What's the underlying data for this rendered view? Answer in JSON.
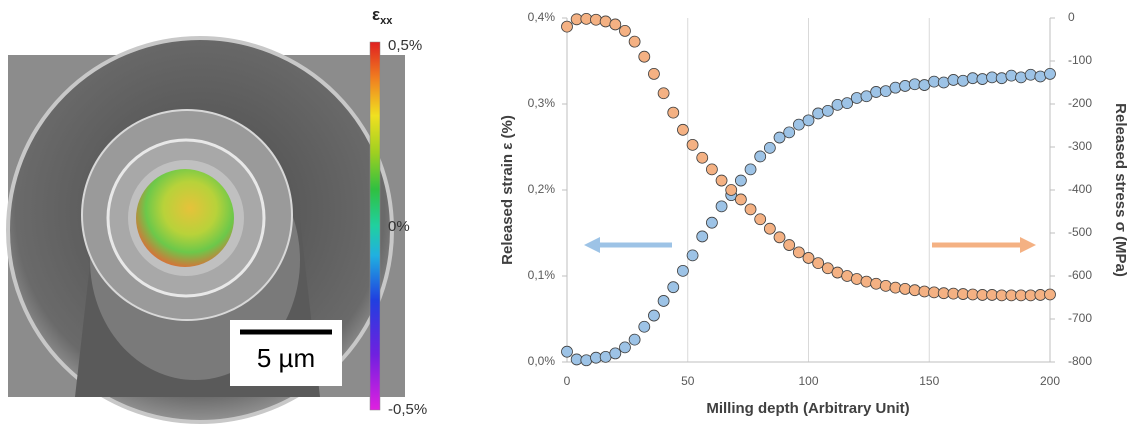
{
  "colorbar": {
    "title": "ε",
    "title_sub": "xx",
    "labels": [
      "0,5%",
      "0%",
      "-0,5%"
    ]
  },
  "scale_bar": "5 µm",
  "chart_data": {
    "type": "scatter",
    "x": [
      0,
      4,
      8,
      12,
      16,
      20,
      24,
      28,
      32,
      36,
      40,
      44,
      48,
      52,
      56,
      60,
      64,
      68,
      72,
      76,
      80,
      84,
      88,
      92,
      96,
      100,
      104,
      108,
      112,
      116,
      120,
      124,
      128,
      132,
      136,
      140,
      144,
      148,
      152,
      156,
      160,
      164,
      168,
      172,
      176,
      180,
      184,
      188,
      192,
      196,
      200
    ],
    "series": [
      {
        "color": "#9dc3e6",
        "axis": "y",
        "values": [
          0.012,
          0.003,
          0.002,
          0.005,
          0.006,
          0.01,
          0.017,
          0.026,
          0.041,
          0.054,
          0.071,
          0.087,
          0.106,
          0.124,
          0.146,
          0.162,
          0.181,
          0.194,
          0.211,
          0.224,
          0.239,
          0.249,
          0.261,
          0.267,
          0.276,
          0.281,
          0.289,
          0.292,
          0.299,
          0.301,
          0.307,
          0.309,
          0.314,
          0.315,
          0.319,
          0.321,
          0.323,
          0.322,
          0.326,
          0.325,
          0.328,
          0.327,
          0.33,
          0.329,
          0.331,
          0.33,
          0.333,
          0.331,
          0.334,
          0.332,
          0.335
        ]
      },
      {
        "color": "#f4b183",
        "axis": "y2",
        "values": [
          -20,
          -3,
          -2,
          -4,
          -8,
          -15,
          -30,
          -55,
          -90,
          -130,
          -175,
          -220,
          -260,
          -295,
          -325,
          -352,
          -378,
          -400,
          -422,
          -445,
          -468,
          -490,
          -510,
          -528,
          -545,
          -558,
          -570,
          -582,
          -592,
          -600,
          -607,
          -613,
          -618,
          -623,
          -627,
          -630,
          -633,
          -636,
          -638,
          -640,
          -641,
          -642,
          -643,
          -644,
          -644,
          -645,
          -645,
          -645,
          -645,
          -644,
          -643
        ]
      }
    ],
    "xlim": [
      0,
      200
    ],
    "xticks": [
      0,
      50,
      100,
      150,
      200
    ],
    "ylim": [
      0,
      0.4
    ],
    "yticks": [
      {
        "value": 0,
        "label": "0,0%"
      },
      {
        "value": 0.1,
        "label": "0,1%"
      },
      {
        "value": 0.2,
        "label": "0,2%"
      },
      {
        "value": 0.3,
        "label": "0,3%"
      },
      {
        "value": 0.4,
        "label": "0,4%"
      }
    ],
    "y2lim": [
      -800,
      0
    ],
    "y2ticks": [
      -800,
      -700,
      -600,
      -500,
      -400,
      -300,
      -200,
      -100,
      0
    ],
    "xlabel": "Milling depth (Arbitrary Unit)",
    "ylabel": "Released strain ε (%)",
    "y2label": "Released stress σ (MPa)",
    "grid": "x"
  }
}
